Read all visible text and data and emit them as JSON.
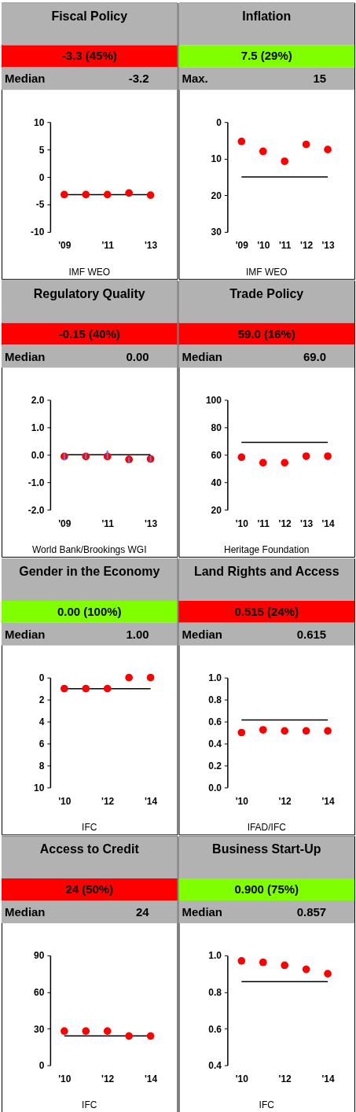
{
  "chart_data": [
    {
      "type": "scatter",
      "title": "Fiscal Policy",
      "subtitle": "-3.3 (45%)",
      "categories": [
        "'09",
        null,
        "'11",
        null,
        "'13"
      ],
      "marker": "circle",
      "series": [
        {
          "color": "#ff0000",
          "values": [
            -3.2,
            -3.2,
            -3.2,
            -2.9,
            -3.3
          ]
        }
      ],
      "ylim": [
        -10,
        10
      ],
      "yticks": [
        -10,
        -5,
        0,
        5,
        10
      ],
      "ref_lines": [
        {
          "axis": "y",
          "value": -3.2,
          "color": "#000000"
        }
      ],
      "annotations": [
        "Median",
        "-3.2",
        "IMF WEO"
      ]
    },
    {
      "type": "scatter",
      "title": "Inflation",
      "subtitle": "7.5 (29%)",
      "categories": [
        "'09",
        "'10",
        "'11",
        "'12",
        "'13"
      ],
      "marker": "circle",
      "series": [
        {
          "color": "#ff0000",
          "values": [
            5.3,
            8.0,
            10.7,
            6.1,
            7.5
          ]
        }
      ],
      "ylim": [
        30,
        0
      ],
      "yticks": [
        0,
        10,
        20,
        30
      ],
      "ref_lines": [
        {
          "axis": "y",
          "value": 15,
          "color": "#000000"
        }
      ],
      "annotations": [
        "Max.",
        "15",
        "IMF WEO"
      ]
    },
    {
      "type": "scatter",
      "title": "Regulatory Quality",
      "subtitle": "-0.15 (40%)",
      "categories": [
        "'09",
        null,
        "'11",
        null,
        "'13"
      ],
      "marker": "circle",
      "series": [
        {
          "color": "#ff0000",
          "values": [
            -0.06,
            -0.06,
            -0.06,
            -0.17,
            -0.15
          ],
          "errors": [
            [
              -0.2,
              0.05
            ],
            [
              -0.15,
              0.05
            ],
            [
              -0.15,
              0.15
            ],
            [
              -0.3,
              -0.1
            ],
            [
              -0.25,
              -0.05
            ]
          ]
        }
      ],
      "ylim": [
        -2,
        2
      ],
      "yticks": [
        {
          "value": -2,
          "label": "-2.0"
        },
        {
          "value": -1,
          "label": "-1.0"
        },
        {
          "value": 0,
          "label": "0.0"
        },
        {
          "value": 1,
          "label": "1.0"
        },
        {
          "value": 2,
          "label": "2.0"
        }
      ],
      "ref_lines": [
        {
          "axis": "y",
          "value": 0,
          "color": "#000000"
        }
      ],
      "annotations": [
        "Median",
        "0.00",
        "World Bank/Brookings WGI"
      ]
    },
    {
      "type": "scatter",
      "title": "Trade Policy",
      "subtitle": "59.0 (16%)",
      "categories": [
        "'10",
        "'11",
        "'12",
        "'13",
        "'14"
      ],
      "marker": "circle",
      "series": [
        {
          "color": "#ff0000",
          "values": [
            58.2,
            54.2,
            54.2,
            59.0,
            59.0
          ]
        }
      ],
      "ylim": [
        20,
        100
      ],
      "yticks": [
        20,
        40,
        60,
        80,
        100
      ],
      "ref_lines": [
        {
          "axis": "y",
          "value": 69.0,
          "color": "#000000"
        }
      ],
      "annotations": [
        "Median",
        "69.0",
        "Heritage Foundation"
      ]
    },
    {
      "type": "scatter",
      "title": "Gender in the Economy",
      "subtitle": "0.00 (100%)",
      "categories": [
        "'10",
        null,
        "'12",
        null,
        "'14"
      ],
      "marker": "circle",
      "series": [
        {
          "color": "#ff0000",
          "values": [
            1,
            1,
            1,
            0,
            0
          ]
        }
      ],
      "ylim": [
        10,
        0
      ],
      "yticks": [
        0,
        2,
        4,
        6,
        8,
        10
      ],
      "ref_lines": [
        {
          "axis": "y",
          "value": 1.0,
          "color": "#000000"
        }
      ],
      "annotations": [
        "Median",
        "1.00",
        "IFC"
      ]
    },
    {
      "type": "scatter",
      "title": "Land Rights and Access",
      "subtitle": "0.515 (24%)",
      "categories": [
        "'10",
        null,
        "'12",
        null,
        "'14"
      ],
      "marker": "circle",
      "series": [
        {
          "color": "#ff0000",
          "values": [
            0.5,
            0.525,
            0.515,
            0.515,
            0.515
          ]
        }
      ],
      "ylim": [
        0,
        1
      ],
      "yticks": [
        {
          "value": 0,
          "label": "0.0"
        },
        0.2,
        0.4,
        0.6,
        0.8,
        {
          "value": 1,
          "label": "1.0"
        }
      ],
      "ref_lines": [
        {
          "axis": "y",
          "value": 0.615,
          "color": "#000000"
        }
      ],
      "annotations": [
        "Median",
        "0.615",
        "IFAD/IFC"
      ]
    },
    {
      "type": "scatter",
      "title": "Access to Credit",
      "subtitle": "24 (50%)",
      "categories": [
        "'10",
        null,
        "'12",
        null,
        "'14"
      ],
      "marker": "circle",
      "series": [
        {
          "color": "#ff0000",
          "values": [
            28,
            28,
            28,
            24,
            24
          ]
        }
      ],
      "ylim": [
        0,
        90
      ],
      "yticks": [
        0,
        30,
        60,
        90
      ],
      "ref_lines": [
        {
          "axis": "y",
          "value": 24,
          "color": "#000000"
        }
      ],
      "annotations": [
        "Median",
        "24",
        "IFC"
      ]
    },
    {
      "type": "scatter",
      "title": "Business Start-Up",
      "subtitle": "0.900 (75%)",
      "categories": [
        "'10",
        null,
        "'12",
        null,
        "'14"
      ],
      "marker": "circle",
      "series": [
        {
          "color": "#ff0000",
          "values": [
            0.97,
            0.962,
            0.946,
            0.924,
            0.9
          ]
        }
      ],
      "ylim": [
        0.4,
        1.0
      ],
      "yticks": [
        0.4,
        0.6,
        0.8,
        {
          "value": 1.0,
          "label": "1.0"
        }
      ],
      "ref_lines": [
        {
          "axis": "y",
          "value": 0.857,
          "color": "#000000"
        }
      ],
      "annotations": [
        "Median",
        "0.857",
        "IFC"
      ]
    }
  ]
}
